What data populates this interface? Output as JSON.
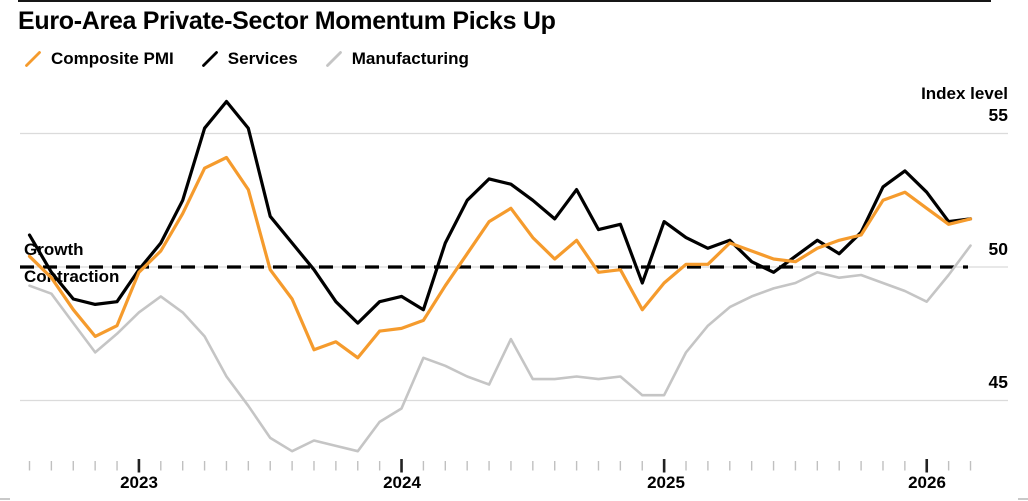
{
  "title": "Euro-Area Private-Sector Momentum Picks Up",
  "legend": [
    {
      "label": "Composite PMI",
      "color": "#F59B2D"
    },
    {
      "label": "Services",
      "color": "#000000"
    },
    {
      "label": "Manufacturing",
      "color": "#C5C5C5"
    }
  ],
  "axis": {
    "unit_label": "Index level",
    "y_tick_labels": [
      "55",
      "50",
      "45"
    ],
    "x_labels": [
      "2023",
      "2024",
      "2025",
      "2026"
    ]
  },
  "annotations": {
    "above_line": "Growth",
    "below_line": "Contraction"
  },
  "colors": {
    "composite": "#F59B2D",
    "services": "#000000",
    "manufacturing": "#C5C5C5",
    "gridline": "#DBDBDB",
    "threshold_dash": "#000000",
    "minor_tick": "#C0C0C0",
    "major_tick": "#222222"
  },
  "chart_data": {
    "type": "line",
    "title": "Euro-Area Private-Sector Momentum Picks Up",
    "ylabel": "Index level",
    "y_ticks": [
      45,
      50,
      55
    ],
    "ylim": [
      42.5,
      57.2
    ],
    "grid": "horizontal",
    "legend_position": "top",
    "threshold": {
      "value": 50,
      "style": "dashed",
      "label_above": "Growth",
      "label_below": "Contraction"
    },
    "x_tick_labels": [
      "2023",
      "2024",
      "2025",
      "2026"
    ],
    "x": [
      "2022-08",
      "2022-09",
      "2022-10",
      "2022-11",
      "2022-12",
      "2023-01",
      "2023-02",
      "2023-03",
      "2023-04",
      "2023-05",
      "2023-06",
      "2023-07",
      "2023-08",
      "2023-09",
      "2023-10",
      "2023-11",
      "2023-12",
      "2024-01",
      "2024-02",
      "2024-03",
      "2024-04",
      "2024-05",
      "2024-06",
      "2024-07",
      "2024-08",
      "2024-09",
      "2024-10",
      "2024-11",
      "2024-12",
      "2025-01",
      "2025-02",
      "2025-03",
      "2025-04",
      "2025-05",
      "2025-06",
      "2025-07",
      "2025-08",
      "2025-09",
      "2025-10",
      "2025-11",
      "2025-12",
      "2026-01",
      "2026-02",
      "2026-03"
    ],
    "series": [
      {
        "name": "Composite PMI",
        "color": "#F59B2D",
        "width": 3.2,
        "values": [
          50.4,
          49.6,
          48.4,
          47.4,
          47.8,
          49.8,
          50.6,
          52.0,
          53.7,
          54.1,
          52.9,
          49.9,
          48.8,
          46.9,
          47.2,
          46.6,
          47.6,
          47.7,
          48.0,
          49.3,
          50.5,
          51.7,
          52.2,
          51.1,
          50.3,
          51.0,
          49.8,
          49.9,
          48.4,
          49.4,
          50.1,
          50.1,
          50.9,
          50.6,
          50.3,
          50.2,
          50.7,
          51.0,
          51.2,
          52.5,
          52.8,
          52.2,
          51.6,
          51.8
        ]
      },
      {
        "name": "Services",
        "color": "#000000",
        "width": 3.2,
        "values": [
          51.2,
          49.8,
          48.8,
          48.6,
          48.7,
          49.9,
          50.9,
          52.5,
          55.2,
          56.2,
          55.2,
          51.9,
          50.9,
          49.9,
          48.7,
          47.9,
          48.7,
          48.9,
          48.4,
          50.9,
          52.5,
          53.3,
          53.1,
          52.5,
          51.8,
          52.9,
          51.4,
          51.6,
          49.4,
          51.7,
          51.1,
          50.7,
          51.0,
          50.2,
          49.8,
          50.4,
          51.0,
          50.5,
          51.3,
          53.0,
          53.6,
          52.8,
          51.7,
          51.8
        ]
      },
      {
        "name": "Manufacturing",
        "color": "#C5C5C5",
        "width": 2.6,
        "values": [
          49.3,
          49.0,
          47.9,
          46.8,
          47.5,
          48.3,
          48.9,
          48.3,
          47.4,
          45.9,
          44.8,
          43.6,
          43.1,
          43.5,
          43.3,
          43.1,
          44.2,
          44.7,
          46.6,
          46.3,
          45.9,
          45.6,
          47.3,
          45.8,
          45.8,
          45.9,
          45.8,
          45.9,
          45.2,
          45.2,
          46.8,
          47.8,
          48.5,
          48.9,
          49.2,
          49.4,
          49.8,
          49.6,
          49.7,
          49.4,
          49.1,
          48.7,
          49.7,
          50.8
        ]
      }
    ]
  }
}
